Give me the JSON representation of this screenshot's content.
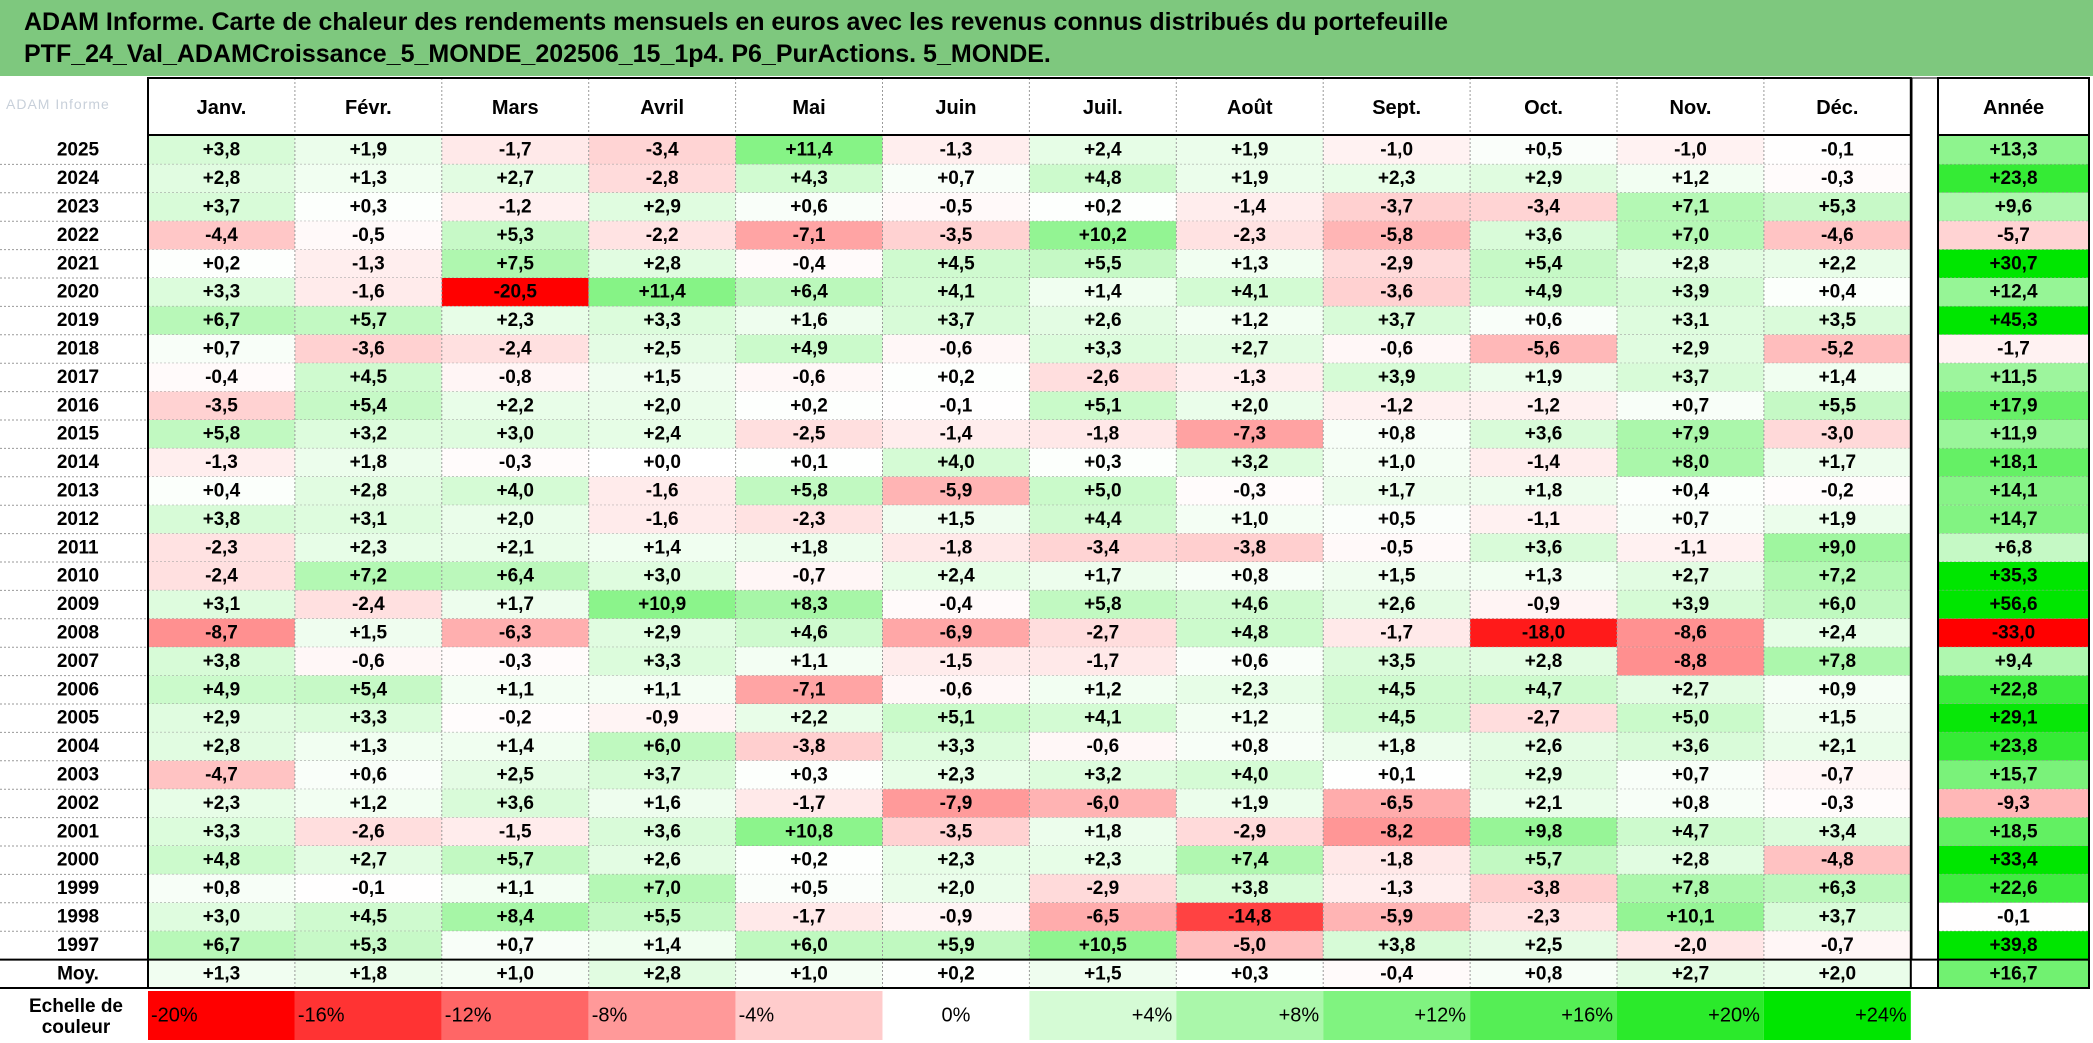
{
  "title": {
    "line1": "ADAM Informe. Carte de chaleur des rendements mensuels en euros avec les revenus connus distribués du portefeuille",
    "line2": "PTF_24_Val_ADAMCroissance_5_MONDE_202506_15_1p4. P6_PurActions. 5_MONDE."
  },
  "chart_data": {
    "type": "heatmap",
    "months": [
      "Janv.",
      "Févr.",
      "Mars",
      "Avril",
      "Mai",
      "Juin",
      "Juil.",
      "Août",
      "Sept.",
      "Oct.",
      "Nov.",
      "Déc."
    ],
    "annual_header": "Année",
    "rows": [
      {
        "year": "2025",
        "values": [
          "+3,8",
          "+1,9",
          "-1,7",
          "-3,4",
          "+11,4",
          "-1,3",
          "+2,4",
          "+1,9",
          "-1,0",
          "+0,5",
          "-1,0",
          "-0,1"
        ],
        "annual": "+13,3"
      },
      {
        "year": "2024",
        "values": [
          "+2,8",
          "+1,3",
          "+2,7",
          "-2,8",
          "+4,3",
          "+0,7",
          "+4,8",
          "+1,9",
          "+2,3",
          "+2,9",
          "+1,2",
          "-0,3"
        ],
        "annual": "+23,8"
      },
      {
        "year": "2023",
        "values": [
          "+3,7",
          "+0,3",
          "-1,2",
          "+2,9",
          "+0,6",
          "-0,5",
          "+0,2",
          "-1,4",
          "-3,7",
          "-3,4",
          "+7,1",
          "+5,3"
        ],
        "annual": "+9,6"
      },
      {
        "year": "2022",
        "values": [
          "-4,4",
          "-0,5",
          "+5,3",
          "-2,2",
          "-7,1",
          "-3,5",
          "+10,2",
          "-2,3",
          "-5,8",
          "+3,6",
          "+7,0",
          "-4,6"
        ],
        "annual": "-5,7"
      },
      {
        "year": "2021",
        "values": [
          "+0,2",
          "-1,3",
          "+7,5",
          "+2,8",
          "-0,4",
          "+4,5",
          "+5,5",
          "+1,3",
          "-2,9",
          "+5,4",
          "+2,8",
          "+2,2"
        ],
        "annual": "+30,7"
      },
      {
        "year": "2020",
        "values": [
          "+3,3",
          "-1,6",
          "-20,5",
          "+11,4",
          "+6,4",
          "+4,1",
          "+1,4",
          "+4,1",
          "-3,6",
          "+4,9",
          "+3,9",
          "+0,4"
        ],
        "annual": "+12,4"
      },
      {
        "year": "2019",
        "values": [
          "+6,7",
          "+5,7",
          "+2,3",
          "+3,3",
          "+1,6",
          "+3,7",
          "+2,6",
          "+1,2",
          "+3,7",
          "+0,6",
          "+3,1",
          "+3,5"
        ],
        "annual": "+45,3"
      },
      {
        "year": "2018",
        "values": [
          "+0,7",
          "-3,6",
          "-2,4",
          "+2,5",
          "+4,9",
          "-0,6",
          "+3,3",
          "+2,7",
          "-0,6",
          "-5,6",
          "+2,9",
          "-5,2"
        ],
        "annual": "-1,7"
      },
      {
        "year": "2017",
        "values": [
          "-0,4",
          "+4,5",
          "-0,8",
          "+1,5",
          "-0,6",
          "+0,2",
          "-2,6",
          "-1,3",
          "+3,9",
          "+1,9",
          "+3,7",
          "+1,4"
        ],
        "annual": "+11,5"
      },
      {
        "year": "2016",
        "values": [
          "-3,5",
          "+5,4",
          "+2,2",
          "+2,0",
          "+0,2",
          "-0,1",
          "+5,1",
          "+2,0",
          "-1,2",
          "-1,2",
          "+0,7",
          "+5,5"
        ],
        "annual": "+17,9"
      },
      {
        "year": "2015",
        "values": [
          "+5,8",
          "+3,2",
          "+3,0",
          "+2,4",
          "-2,5",
          "-1,4",
          "-1,8",
          "-7,3",
          "+0,8",
          "+3,6",
          "+7,9",
          "-3,0"
        ],
        "annual": "+11,9"
      },
      {
        "year": "2014",
        "values": [
          "-1,3",
          "+1,8",
          "-0,3",
          "+0,0",
          "+0,1",
          "+4,0",
          "+0,3",
          "+3,2",
          "+1,0",
          "-1,4",
          "+8,0",
          "+1,7"
        ],
        "annual": "+18,1"
      },
      {
        "year": "2013",
        "values": [
          "+0,4",
          "+2,8",
          "+4,0",
          "-1,6",
          "+5,8",
          "-5,9",
          "+5,0",
          "-0,3",
          "+1,7",
          "+1,8",
          "+0,4",
          "-0,2"
        ],
        "annual": "+14,1"
      },
      {
        "year": "2012",
        "values": [
          "+3,8",
          "+3,1",
          "+2,0",
          "-1,6",
          "-2,3",
          "+1,5",
          "+4,4",
          "+1,0",
          "+0,5",
          "-1,1",
          "+0,7",
          "+1,9"
        ],
        "annual": "+14,7"
      },
      {
        "year": "2011",
        "values": [
          "-2,3",
          "+2,3",
          "+2,1",
          "+1,4",
          "+1,8",
          "-1,8",
          "-3,4",
          "-3,8",
          "-0,5",
          "+3,6",
          "-1,1",
          "+9,0"
        ],
        "annual": "+6,8"
      },
      {
        "year": "2010",
        "values": [
          "-2,4",
          "+7,2",
          "+6,4",
          "+3,0",
          "-0,7",
          "+2,4",
          "+1,7",
          "+0,8",
          "+1,5",
          "+1,3",
          "+2,7",
          "+7,2"
        ],
        "annual": "+35,3"
      },
      {
        "year": "2009",
        "values": [
          "+3,1",
          "-2,4",
          "+1,7",
          "+10,9",
          "+8,3",
          "-0,4",
          "+5,8",
          "+4,6",
          "+2,6",
          "-0,9",
          "+3,9",
          "+6,0"
        ],
        "annual": "+56,6"
      },
      {
        "year": "2008",
        "values": [
          "-8,7",
          "+1,5",
          "-6,3",
          "+2,9",
          "+4,6",
          "-6,9",
          "-2,7",
          "+4,8",
          "-1,7",
          "-18,0",
          "-8,6",
          "+2,4"
        ],
        "annual": "-33,0"
      },
      {
        "year": "2007",
        "values": [
          "+3,8",
          "-0,6",
          "-0,3",
          "+3,3",
          "+1,1",
          "-1,5",
          "-1,7",
          "+0,6",
          "+3,5",
          "+2,8",
          "-8,8",
          "+7,8"
        ],
        "annual": "+9,4"
      },
      {
        "year": "2006",
        "values": [
          "+4,9",
          "+5,4",
          "+1,1",
          "+1,1",
          "-7,1",
          "-0,6",
          "+1,2",
          "+2,3",
          "+4,5",
          "+4,7",
          "+2,7",
          "+0,9"
        ],
        "annual": "+22,8"
      },
      {
        "year": "2005",
        "values": [
          "+2,9",
          "+3,3",
          "-0,2",
          "-0,9",
          "+2,2",
          "+5,1",
          "+4,1",
          "+1,2",
          "+4,5",
          "-2,7",
          "+5,0",
          "+1,5"
        ],
        "annual": "+29,1"
      },
      {
        "year": "2004",
        "values": [
          "+2,8",
          "+1,3",
          "+1,4",
          "+6,0",
          "-3,8",
          "+3,3",
          "-0,6",
          "+0,8",
          "+1,8",
          "+2,6",
          "+3,6",
          "+2,1"
        ],
        "annual": "+23,8"
      },
      {
        "year": "2003",
        "values": [
          "-4,7",
          "+0,6",
          "+2,5",
          "+3,7",
          "+0,3",
          "+2,3",
          "+3,2",
          "+4,0",
          "+0,1",
          "+2,9",
          "+0,7",
          "-0,7"
        ],
        "annual": "+15,7"
      },
      {
        "year": "2002",
        "values": [
          "+2,3",
          "+1,2",
          "+3,6",
          "+1,6",
          "-1,7",
          "-7,9",
          "-6,0",
          "+1,9",
          "-6,5",
          "+2,1",
          "+0,8",
          "-0,3"
        ],
        "annual": "-9,3"
      },
      {
        "year": "2001",
        "values": [
          "+3,3",
          "-2,6",
          "-1,5",
          "+3,6",
          "+10,8",
          "-3,5",
          "+1,8",
          "-2,9",
          "-8,2",
          "+9,8",
          "+4,7",
          "+3,4"
        ],
        "annual": "+18,5"
      },
      {
        "year": "2000",
        "values": [
          "+4,8",
          "+2,7",
          "+5,7",
          "+2,6",
          "+0,2",
          "+2,3",
          "+2,3",
          "+7,4",
          "-1,8",
          "+5,7",
          "+2,8",
          "-4,8"
        ],
        "annual": "+33,4"
      },
      {
        "year": "1999",
        "values": [
          "+0,8",
          "-0,1",
          "+1,1",
          "+7,0",
          "+0,5",
          "+2,0",
          "-2,9",
          "+3,8",
          "-1,3",
          "-3,8",
          "+7,8",
          "+6,3"
        ],
        "annual": "+22,6"
      },
      {
        "year": "1998",
        "values": [
          "+3,0",
          "+4,5",
          "+8,4",
          "+5,5",
          "-1,7",
          "-0,9",
          "-6,5",
          "-14,8",
          "-5,9",
          "-2,3",
          "+10,1",
          "+3,7"
        ],
        "annual": "-0,1"
      },
      {
        "year": "1997",
        "values": [
          "+6,7",
          "+5,3",
          "+0,7",
          "+1,4",
          "+6,0",
          "+5,9",
          "+10,5",
          "-5,0",
          "+3,8",
          "+2,5",
          "-2,0",
          "-0,7"
        ],
        "annual": "+39,8"
      }
    ],
    "average": {
      "label": "Moy.",
      "values": [
        "+1,3",
        "+1,8",
        "+1,0",
        "+2,8",
        "+1,0",
        "+0,2",
        "+1,5",
        "+0,3",
        "-0,4",
        "+0,8",
        "+2,7",
        "+2,0"
      ],
      "annual": "+16,7"
    },
    "scale": {
      "label_line1": "Echelle de",
      "label_line2": "couleur",
      "stops": [
        "-20%",
        "-16%",
        "-12%",
        "-8%",
        "-4%",
        "0%",
        "+4%",
        "+8%",
        "+12%",
        "+16%",
        "+20%",
        "+24%"
      ]
    },
    "colors": {
      "title_bg": "#7ec87e",
      "negative_max": "#ff0000",
      "neutral": "#ffffff",
      "positive_max": "#00e600"
    }
  }
}
